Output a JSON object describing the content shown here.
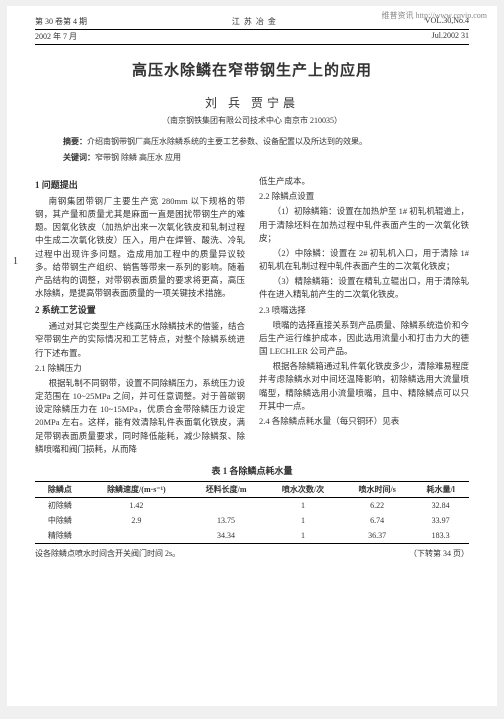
{
  "watermark": "维普资讯 http://www.cqvip.com",
  "header": {
    "left1": "第 30 卷第 4 期",
    "center": "江苏冶金",
    "right1": "VOL.30,No.4",
    "left2": "2002 年 7 月",
    "right2": "Jul.2002   31"
  },
  "title": "高压水除鳞在窄带钢生产上的应用",
  "authors": "刘  兵    贾宁晨",
  "affiliation": "（南京钢铁集团有限公司技术中心    南京市 210035）",
  "abstract_label": "摘要：",
  "abstract": "介绍南钢带钢厂高压水除鳞系统的主要工艺参数、设备配置以及所达到的效果。",
  "keywords_label": "关键词：",
  "keywords": "窄带钢    除鳞    高压水    应用",
  "side_mark": "1",
  "left_col": {
    "s1": "1  问题提出",
    "p1": "南钢集团带钢厂主要生产宽 280mm 以下规格的带钢，其产量和质量尤其是麻面一直是困扰带钢生产的难题。因氧化铁皮（加热炉出来一次氧化铁皮和轧制过程中生成二次氧化铁皮）压入，用户在焊管、酸洗、冷轧过程中出现许多问题。造成用加工程中的质量异议较多。给带钢生产组织、销售等带来一系列的影响。随着产品结构的调整，对带钢表面质量的要求将更高，高压水除鳞，是提高带钢表面质量的一项关键技术措施。",
    "s2": "2  系统工艺设置",
    "p2": "通过对其它类型生产线高压水除鳞技术的借鉴，结合窄带钢生产的实际情况和工艺特点，对整个除鳞系统进行下述布置。",
    "s21": "2.1  除鳞压力",
    "p3": "根据轧制不同钢带，设置不同除鳞压力，系统压力设定范围在 10~25MPa 之间，并可任意调整。对于普碳钢设定除鳞压力在 10~15MPa，优质合金带除鳞压力设定 20MPa 左右。这样，能有效清除轧件表面氧化铁皮，满足带钢表面质量要求，同时降低能耗，减少除鳞泵、除鳞喷嘴和阀门损耗，从而降",
    "": ""
  },
  "right_col": {
    "p0": "低生产成本。",
    "s22": "2.2  除鳞点设置",
    "p1": "（1）初除鳞箱：设置在加热炉至 1# 初轧机辊道上，用于清除坯料在加热过程中轧件表面产生的一次氧化铁皮；",
    "p2": "（2）中除鳞：设置在 2# 初轧机入口，用于清除 1# 初轧机在轧制过程中轧件表面产生的二次氧化铁皮；",
    "p3": "（3）精除鳞箱：设置在精轧立辊出口，用于清除轧件在进入精轧前产生的二次氧化铁皮。",
    "s23": "2.3  喷嘴选择",
    "p4": "喷嘴的选择直接关系到产品质量、除鳞系统造价和今后生产运行维护成本，因此选用流量小和打击力大的德国 LECHLER 公司产品。",
    "p5": "根据各除鳞箱通过轧件氧化铁皮多少，清除难易程度并考虑除鳞水对中间坯温降影响，初除鳞选用大流量喷嘴型，精除鳞选用小流量喷嘴，且中、精除鳞点可以只开其中一点。",
    "s24": "2.4  各除鳞点耗水量（每只铜环）见表"
  },
  "table": {
    "title": "表 1    各除鳞点耗水量",
    "columns": [
      "除鳞点",
      "除鳞速度/(m·s⁻¹)",
      "坯料长度/m",
      "喷水次数/次",
      "喷水时间/s",
      "耗水量/l"
    ],
    "rows": [
      [
        "初除鳞",
        "1.42",
        "",
        "1",
        "6.22",
        "32.84"
      ],
      [
        "中除鳞",
        "2.9",
        "13.75",
        "1",
        "6.74",
        "33.97"
      ],
      [
        "精除鳞",
        "",
        "34.34",
        "1",
        "36.37",
        "183.3"
      ]
    ],
    "note": "设各除鳞点喷水时间含开关阀门时间 2s。"
  },
  "footer_right": "（下转第 34 页）"
}
